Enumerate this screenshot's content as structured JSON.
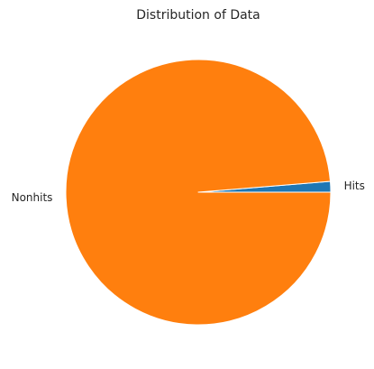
{
  "chart_data": {
    "type": "pie",
    "title": "Distribution of Data",
    "categories": [
      "Hits",
      "Nonhits"
    ],
    "values": [
      1.3,
      98.7
    ],
    "colors": [
      "#1f77b4",
      "#ff7f0e"
    ],
    "start_angle_deg": 0,
    "direction": "counterclockwise",
    "legend": "none"
  }
}
